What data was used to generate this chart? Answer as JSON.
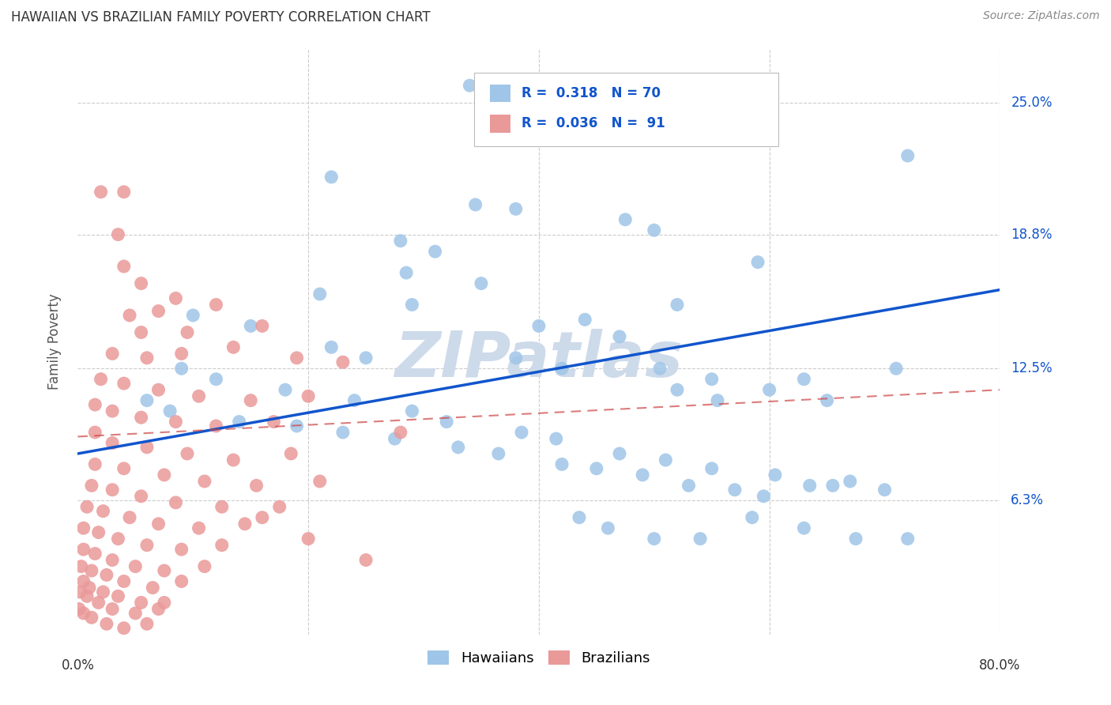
{
  "title": "HAWAIIAN VS BRAZILIAN FAMILY POVERTY CORRELATION CHART",
  "source": "Source: ZipAtlas.com",
  "ylabel": "Family Poverty",
  "ytick_labels": [
    "6.3%",
    "12.5%",
    "18.8%",
    "25.0%"
  ],
  "ytick_values": [
    6.3,
    12.5,
    18.8,
    25.0
  ],
  "xlim": [
    0.0,
    80.0
  ],
  "ylim": [
    0.0,
    27.5
  ],
  "hawaiian_color": "#9fc5e8",
  "brazilian_color": "#ea9999",
  "trend_hawaiian_color": "#1155cc",
  "trend_brazilian_color": "#cc4444",
  "watermark": "ZIPatlas",
  "watermark_color": "#cddaea",
  "background_color": "#ffffff",
  "haw_trend_x0": 0.0,
  "haw_trend_y0": 8.5,
  "haw_trend_x1": 80.0,
  "haw_trend_y1": 16.2,
  "bra_trend_x0": 0.0,
  "bra_trend_y0": 9.3,
  "bra_trend_x1": 80.0,
  "bra_trend_y1": 11.5,
  "hawaiian_points": [
    [
      34.0,
      25.8
    ],
    [
      22.0,
      21.5
    ],
    [
      34.5,
      20.2
    ],
    [
      38.0,
      20.0
    ],
    [
      47.5,
      19.5
    ],
    [
      50.0,
      19.0
    ],
    [
      28.0,
      18.5
    ],
    [
      31.0,
      18.0
    ],
    [
      28.5,
      17.0
    ],
    [
      35.0,
      16.5
    ],
    [
      21.0,
      16.0
    ],
    [
      29.0,
      15.5
    ],
    [
      40.0,
      14.5
    ],
    [
      44.0,
      14.8
    ],
    [
      47.0,
      14.0
    ],
    [
      52.0,
      15.5
    ],
    [
      59.0,
      17.5
    ],
    [
      72.0,
      22.5
    ],
    [
      10.0,
      15.0
    ],
    [
      15.0,
      14.5
    ],
    [
      22.0,
      13.5
    ],
    [
      25.0,
      13.0
    ],
    [
      38.0,
      13.0
    ],
    [
      42.0,
      12.5
    ],
    [
      50.5,
      12.5
    ],
    [
      55.0,
      12.0
    ],
    [
      63.0,
      12.0
    ],
    [
      71.0,
      12.5
    ],
    [
      9.0,
      12.5
    ],
    [
      12.0,
      12.0
    ],
    [
      18.0,
      11.5
    ],
    [
      24.0,
      11.0
    ],
    [
      29.0,
      10.5
    ],
    [
      32.0,
      10.0
    ],
    [
      38.5,
      9.5
    ],
    [
      41.5,
      9.2
    ],
    [
      6.0,
      11.0
    ],
    [
      8.0,
      10.5
    ],
    [
      14.0,
      10.0
    ],
    [
      19.0,
      9.8
    ],
    [
      23.0,
      9.5
    ],
    [
      27.5,
      9.2
    ],
    [
      33.0,
      8.8
    ],
    [
      36.5,
      8.5
    ],
    [
      42.0,
      8.0
    ],
    [
      45.0,
      7.8
    ],
    [
      49.0,
      7.5
    ],
    [
      53.0,
      7.0
    ],
    [
      57.0,
      6.8
    ],
    [
      59.5,
      6.5
    ],
    [
      63.5,
      7.0
    ],
    [
      67.0,
      7.2
    ],
    [
      52.0,
      11.5
    ],
    [
      55.5,
      11.0
    ],
    [
      60.0,
      11.5
    ],
    [
      65.0,
      11.0
    ],
    [
      47.0,
      8.5
    ],
    [
      51.0,
      8.2
    ],
    [
      55.0,
      7.8
    ],
    [
      60.5,
      7.5
    ],
    [
      65.5,
      7.0
    ],
    [
      70.0,
      6.8
    ],
    [
      43.5,
      5.5
    ],
    [
      46.0,
      5.0
    ],
    [
      50.0,
      4.5
    ],
    [
      54.0,
      4.5
    ],
    [
      58.5,
      5.5
    ],
    [
      63.0,
      5.0
    ],
    [
      67.5,
      4.5
    ],
    [
      72.0,
      4.5
    ]
  ],
  "brazilian_points": [
    [
      2.0,
      20.8
    ],
    [
      4.0,
      20.8
    ],
    [
      3.5,
      18.8
    ],
    [
      4.0,
      17.3
    ],
    [
      5.5,
      16.5
    ],
    [
      8.5,
      15.8
    ],
    [
      4.5,
      15.0
    ],
    [
      7.0,
      15.2
    ],
    [
      12.0,
      15.5
    ],
    [
      5.5,
      14.2
    ],
    [
      9.5,
      14.2
    ],
    [
      16.0,
      14.5
    ],
    [
      3.0,
      13.2
    ],
    [
      6.0,
      13.0
    ],
    [
      9.0,
      13.2
    ],
    [
      13.5,
      13.5
    ],
    [
      19.0,
      13.0
    ],
    [
      23.0,
      12.8
    ],
    [
      2.0,
      12.0
    ],
    [
      4.0,
      11.8
    ],
    [
      7.0,
      11.5
    ],
    [
      10.5,
      11.2
    ],
    [
      15.0,
      11.0
    ],
    [
      20.0,
      11.2
    ],
    [
      1.5,
      10.8
    ],
    [
      3.0,
      10.5
    ],
    [
      5.5,
      10.2
    ],
    [
      8.5,
      10.0
    ],
    [
      12.0,
      9.8
    ],
    [
      17.0,
      10.0
    ],
    [
      1.5,
      9.5
    ],
    [
      3.0,
      9.0
    ],
    [
      6.0,
      8.8
    ],
    [
      9.5,
      8.5
    ],
    [
      13.5,
      8.2
    ],
    [
      18.5,
      8.5
    ],
    [
      1.5,
      8.0
    ],
    [
      4.0,
      7.8
    ],
    [
      7.5,
      7.5
    ],
    [
      11.0,
      7.2
    ],
    [
      15.5,
      7.0
    ],
    [
      21.0,
      7.2
    ],
    [
      1.2,
      7.0
    ],
    [
      3.0,
      6.8
    ],
    [
      5.5,
      6.5
    ],
    [
      8.5,
      6.2
    ],
    [
      12.5,
      6.0
    ],
    [
      17.5,
      6.0
    ],
    [
      0.8,
      6.0
    ],
    [
      2.2,
      5.8
    ],
    [
      4.5,
      5.5
    ],
    [
      7.0,
      5.2
    ],
    [
      10.5,
      5.0
    ],
    [
      14.5,
      5.2
    ],
    [
      0.5,
      5.0
    ],
    [
      1.8,
      4.8
    ],
    [
      3.5,
      4.5
    ],
    [
      6.0,
      4.2
    ],
    [
      9.0,
      4.0
    ],
    [
      12.5,
      4.2
    ],
    [
      0.5,
      4.0
    ],
    [
      1.5,
      3.8
    ],
    [
      3.0,
      3.5
    ],
    [
      5.0,
      3.2
    ],
    [
      7.5,
      3.0
    ],
    [
      11.0,
      3.2
    ],
    [
      0.3,
      3.2
    ],
    [
      1.2,
      3.0
    ],
    [
      2.5,
      2.8
    ],
    [
      4.0,
      2.5
    ],
    [
      6.5,
      2.2
    ],
    [
      9.0,
      2.5
    ],
    [
      0.5,
      2.5
    ],
    [
      1.0,
      2.2
    ],
    [
      2.2,
      2.0
    ],
    [
      3.5,
      1.8
    ],
    [
      5.5,
      1.5
    ],
    [
      7.5,
      1.5
    ],
    [
      0.2,
      2.0
    ],
    [
      0.8,
      1.8
    ],
    [
      1.8,
      1.5
    ],
    [
      3.0,
      1.2
    ],
    [
      5.0,
      1.0
    ],
    [
      7.0,
      1.2
    ],
    [
      0.1,
      1.2
    ],
    [
      0.5,
      1.0
    ],
    [
      1.2,
      0.8
    ],
    [
      2.5,
      0.5
    ],
    [
      4.0,
      0.3
    ],
    [
      6.0,
      0.5
    ],
    [
      16.0,
      5.5
    ],
    [
      20.0,
      4.5
    ],
    [
      25.0,
      3.5
    ],
    [
      28.0,
      9.5
    ]
  ]
}
